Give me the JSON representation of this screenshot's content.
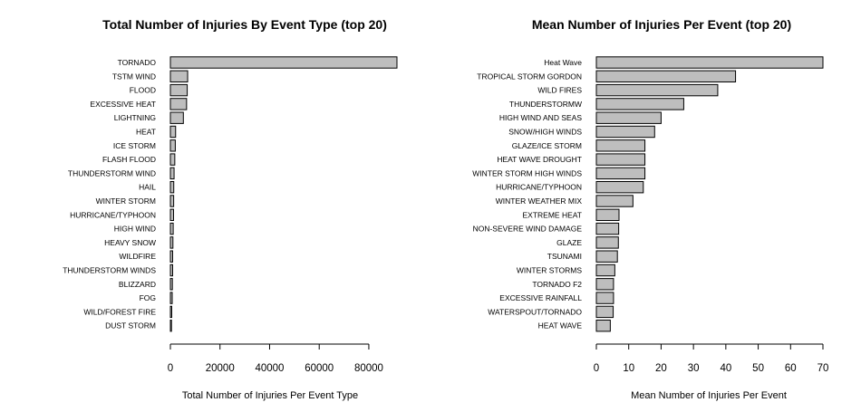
{
  "chart_data": [
    {
      "type": "bar",
      "orientation": "horizontal",
      "title": "Total Number of Injuries By Event Type (top 20)",
      "xlabel": "Total Number of Injuries Per Event Type",
      "ylabel": "",
      "xlim": [
        0,
        91346
      ],
      "xticks": [
        0,
        20000,
        40000,
        60000,
        80000
      ],
      "bar_color": "#bebebe",
      "categories": [
        "TORNADO",
        "TSTM WIND",
        "FLOOD",
        "EXCESSIVE HEAT",
        "LIGHTNING",
        "HEAT",
        "ICE STORM",
        "FLASH FLOOD",
        "THUNDERSTORM WIND",
        "HAIL",
        "WINTER STORM",
        "HURRICANE/TYPHOON",
        "HIGH WIND",
        "HEAVY SNOW",
        "WILDFIRE",
        "THUNDERSTORM WINDS",
        "BLIZZARD",
        "FOG",
        "WILD/FOREST FIRE",
        "DUST STORM"
      ],
      "values": [
        91346,
        6957,
        6789,
        6525,
        5230,
        2100,
        1975,
        1777,
        1488,
        1361,
        1321,
        1275,
        1137,
        1021,
        911,
        908,
        805,
        734,
        545,
        440
      ]
    },
    {
      "type": "bar",
      "orientation": "horizontal",
      "title": "Mean Number of Injuries Per Event (top 20)",
      "xlabel": "Mean Number of Injuries Per Event",
      "ylabel": "",
      "xlim": [
        0,
        70
      ],
      "xticks": [
        0,
        10,
        20,
        30,
        40,
        50,
        60,
        70
      ],
      "bar_color": "#bebebe",
      "categories": [
        "Heat Wave",
        "TROPICAL STORM GORDON",
        "WILD FIRES",
        "THUNDERSTORMW",
        "HIGH WIND AND SEAS",
        "SNOW/HIGH WINDS",
        "GLAZE/ICE STORM",
        "HEAT WAVE DROUGHT",
        "WINTER STORM HIGH WINDS",
        "HURRICANE/TYPHOON",
        "WINTER WEATHER MIX",
        "EXTREME HEAT",
        "NON-SEVERE WIND DAMAGE",
        "GLAZE",
        "TSUNAMI",
        "WINTER STORMS",
        "TORNADO F2",
        "EXCESSIVE RAINFALL",
        "WATERSPOUT/TORNADO",
        "HEAT WAVE"
      ],
      "values": [
        70,
        43,
        37.5,
        27,
        20,
        18,
        15,
        15,
        15,
        14.5,
        11.3,
        7,
        6.9,
        6.8,
        6.5,
        5.7,
        5.3,
        5.3,
        5.2,
        4.3
      ]
    }
  ]
}
